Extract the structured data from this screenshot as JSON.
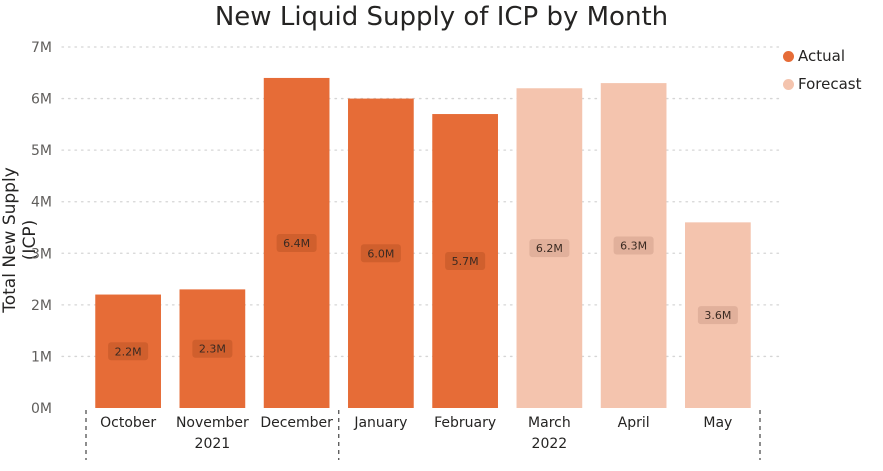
{
  "chart_data": {
    "type": "bar",
    "title": "New Liquid Supply of ICP by Month",
    "ylabel": "Total New Supply (ICP)",
    "xlabel": "",
    "ylim": [
      0,
      7000000
    ],
    "yticks": [
      {
        "value": 0,
        "label": "0M"
      },
      {
        "value": 1000000,
        "label": "1M"
      },
      {
        "value": 2000000,
        "label": "2M"
      },
      {
        "value": 3000000,
        "label": "3M"
      },
      {
        "value": 4000000,
        "label": "4M"
      },
      {
        "value": 5000000,
        "label": "5M"
      },
      {
        "value": 6000000,
        "label": "6M"
      },
      {
        "value": 7000000,
        "label": "7M"
      }
    ],
    "grid": true,
    "legend_position": "top-right",
    "legend": [
      {
        "name": "Actual",
        "color": "#E66C37"
      },
      {
        "name": "Forecast",
        "color": "#F4C4AE"
      }
    ],
    "categories": [
      "October",
      "November",
      "December",
      "January",
      "February",
      "March",
      "April",
      "May"
    ],
    "year_groups": [
      {
        "label": "2021",
        "start": 0,
        "end": 2
      },
      {
        "label": "2022",
        "start": 3,
        "end": 7
      }
    ],
    "bars": [
      {
        "category": "October",
        "value": 2200000,
        "label": "2.2M",
        "series": "Actual"
      },
      {
        "category": "November",
        "value": 2300000,
        "label": "2.3M",
        "series": "Actual"
      },
      {
        "category": "December",
        "value": 6400000,
        "label": "6.4M",
        "series": "Actual"
      },
      {
        "category": "January",
        "value": 6000000,
        "label": "6.0M",
        "series": "Actual"
      },
      {
        "category": "February",
        "value": 5700000,
        "label": "5.7M",
        "series": "Actual"
      },
      {
        "category": "March",
        "value": 6200000,
        "label": "6.2M",
        "series": "Forecast"
      },
      {
        "category": "April",
        "value": 6300000,
        "label": "6.3M",
        "series": "Forecast"
      },
      {
        "category": "May",
        "value": 3600000,
        "label": "3.6M",
        "series": "Forecast"
      }
    ]
  }
}
